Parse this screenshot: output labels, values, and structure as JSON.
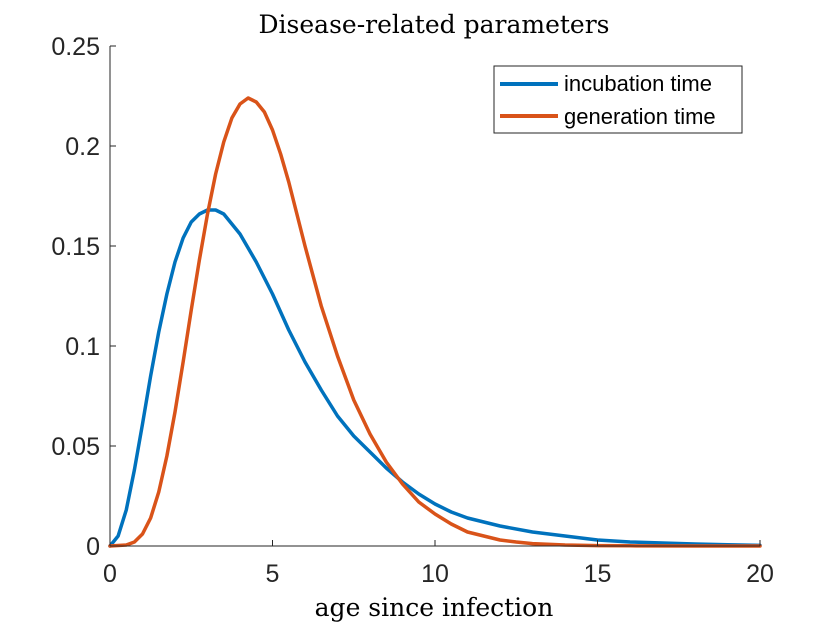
{
  "chart_data": {
    "type": "line",
    "title": "Disease-related parameters",
    "xlabel": "age since infection",
    "ylabel": "",
    "xlim": [
      0,
      20
    ],
    "ylim": [
      0,
      0.25
    ],
    "xticks": [
      0,
      5,
      10,
      15,
      20
    ],
    "xtick_labels": [
      "0",
      "5",
      "10",
      "15",
      "20"
    ],
    "yticks": [
      0,
      0.05,
      0.1,
      0.15,
      0.2,
      0.25
    ],
    "ytick_labels": [
      "0",
      "0.05",
      "0.1",
      "0.15",
      "0.2",
      "0.25"
    ],
    "grid": false,
    "legend_position": "top-right",
    "series": [
      {
        "name": "incubation time",
        "color": "#0072BD",
        "x": [
          0,
          0.25,
          0.5,
          0.75,
          1,
          1.25,
          1.5,
          1.75,
          2,
          2.25,
          2.5,
          2.75,
          3,
          3.25,
          3.5,
          3.75,
          4,
          4.25,
          4.5,
          4.75,
          5,
          5.5,
          6,
          6.5,
          7,
          7.5,
          8,
          8.5,
          9,
          9.5,
          10,
          10.5,
          11,
          11.5,
          12,
          13,
          14,
          15,
          16,
          17,
          18,
          19,
          20
        ],
        "y": [
          0,
          0.005,
          0.018,
          0.038,
          0.061,
          0.085,
          0.107,
          0.126,
          0.142,
          0.154,
          0.162,
          0.166,
          0.168,
          0.168,
          0.166,
          0.161,
          0.156,
          0.149,
          0.142,
          0.134,
          0.126,
          0.108,
          0.092,
          0.078,
          0.065,
          0.055,
          0.047,
          0.039,
          0.032,
          0.026,
          0.021,
          0.017,
          0.014,
          0.012,
          0.01,
          0.007,
          0.005,
          0.003,
          0.002,
          0.0015,
          0.001,
          0.0006,
          0.0003
        ]
      },
      {
        "name": "generation time",
        "color": "#D95319",
        "x": [
          0,
          0.5,
          0.75,
          1,
          1.25,
          1.5,
          1.75,
          2,
          2.25,
          2.5,
          2.75,
          3,
          3.25,
          3.5,
          3.75,
          4,
          4.25,
          4.5,
          4.75,
          5,
          5.25,
          5.5,
          5.75,
          6,
          6.5,
          7,
          7.5,
          8,
          8.5,
          9,
          9.5,
          10,
          10.5,
          11,
          11.5,
          12,
          12.5,
          13,
          14,
          15,
          16,
          18,
          20
        ],
        "y": [
          0,
          0.0005,
          0.002,
          0.006,
          0.014,
          0.027,
          0.045,
          0.067,
          0.092,
          0.118,
          0.143,
          0.166,
          0.186,
          0.202,
          0.214,
          0.221,
          0.224,
          0.222,
          0.217,
          0.208,
          0.196,
          0.182,
          0.166,
          0.15,
          0.12,
          0.095,
          0.073,
          0.056,
          0.042,
          0.031,
          0.022,
          0.016,
          0.011,
          0.007,
          0.005,
          0.003,
          0.002,
          0.0012,
          0.0005,
          0.0002,
          0.0001,
          0,
          0
        ]
      }
    ]
  }
}
